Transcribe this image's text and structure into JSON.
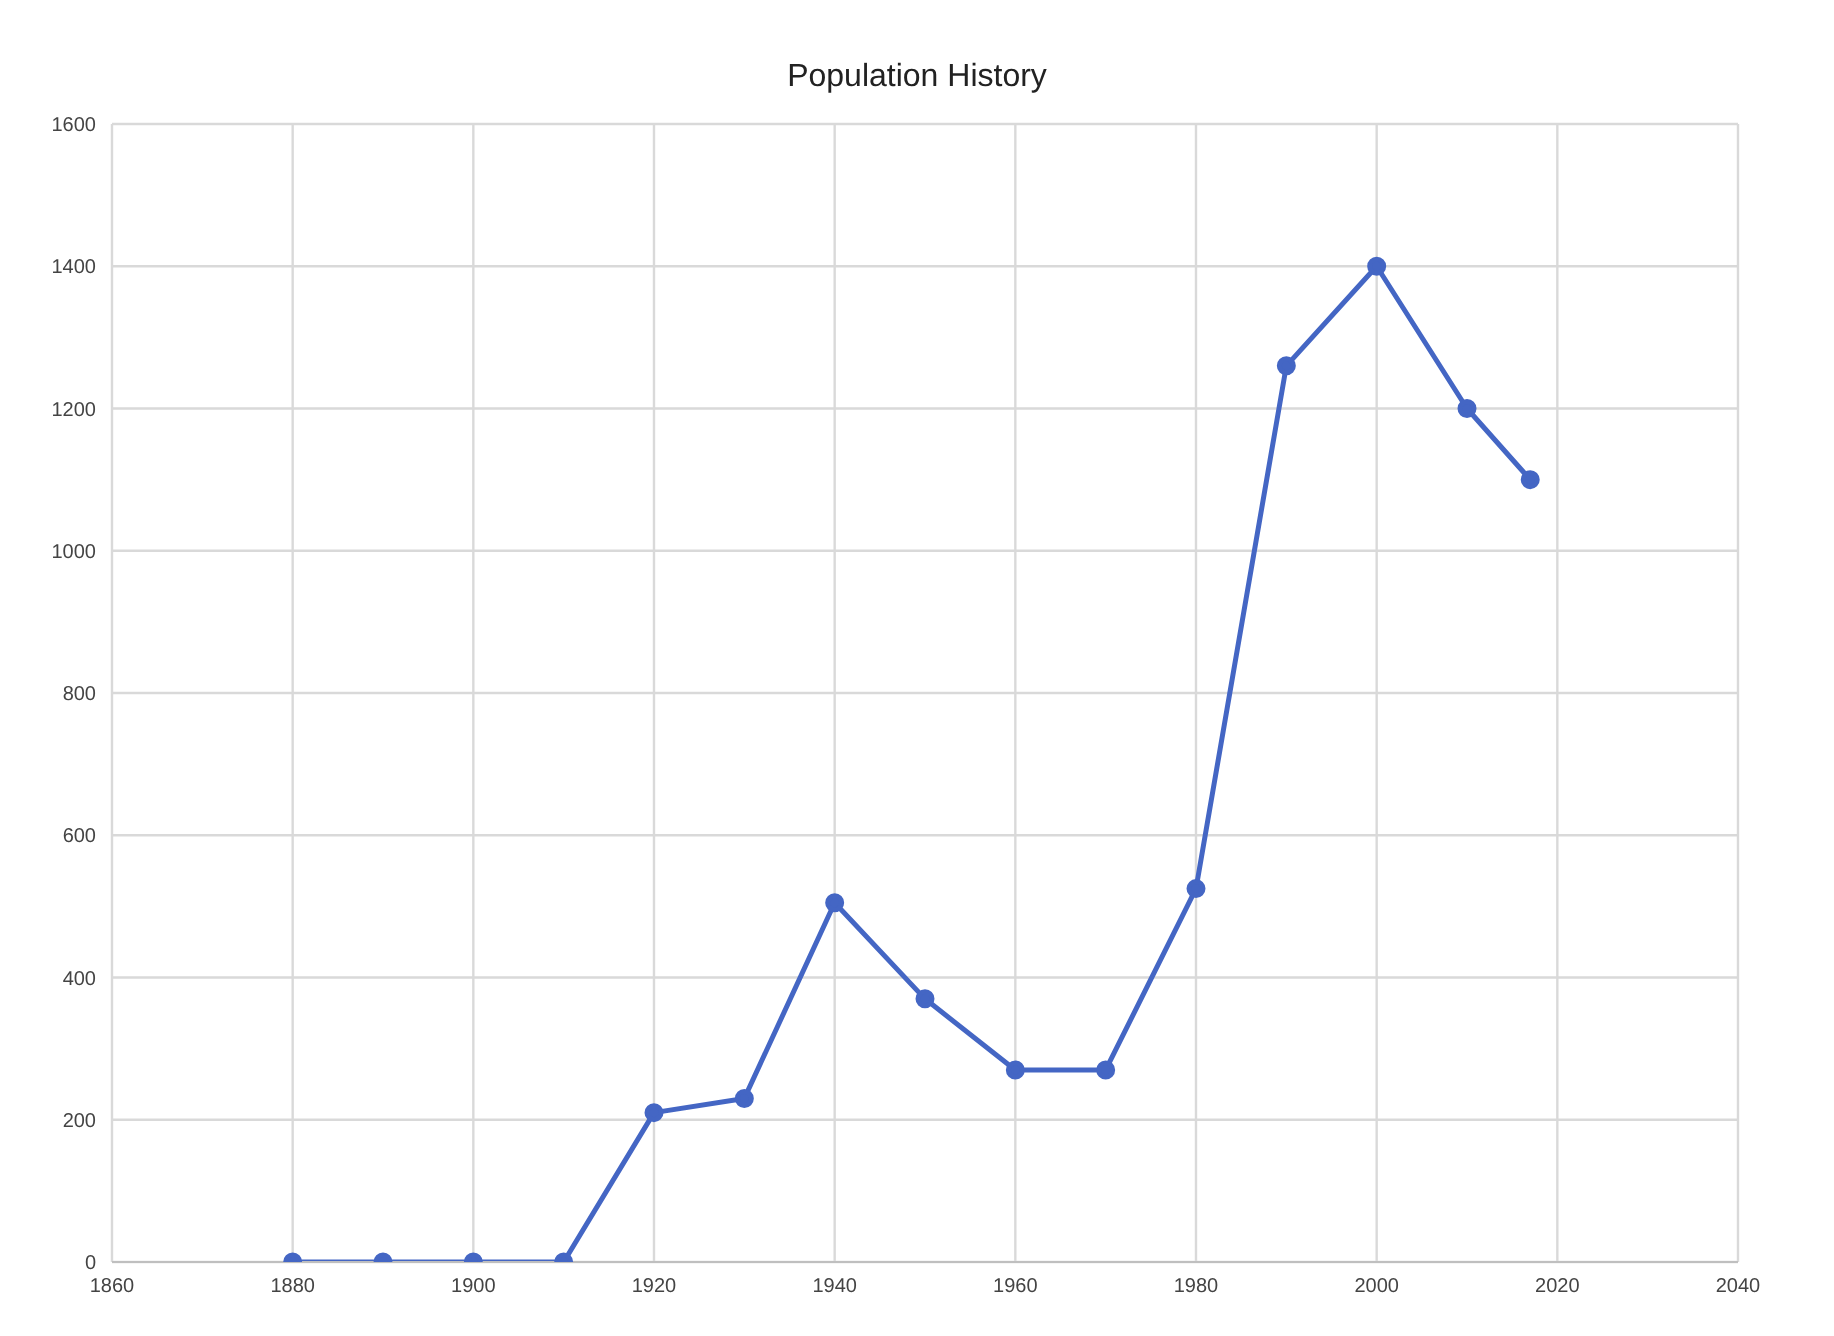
{
  "chart_data": {
    "type": "line",
    "title": "Population History",
    "x": [
      1880,
      1890,
      1900,
      1910,
      1920,
      1930,
      1940,
      1950,
      1960,
      1970,
      1980,
      1990,
      2000,
      2010,
      2017
    ],
    "series": [
      {
        "color": "#4466c4",
        "values": [
          0,
          0,
          0,
          0,
          210,
          230,
          505,
          370,
          270,
          270,
          525,
          1260,
          1400,
          1200,
          1100
        ]
      }
    ],
    "xlim": [
      1860,
      2040
    ],
    "xticks": [
      1860,
      1880,
      1900,
      1920,
      1940,
      1960,
      1980,
      2000,
      2020,
      2040
    ],
    "ylim": [
      0,
      1600
    ],
    "yticks": [
      0,
      200,
      400,
      600,
      800,
      1000,
      1200,
      1400,
      1600
    ],
    "grid": true,
    "marker": "circle",
    "line_style": "solid",
    "legend": false
  }
}
